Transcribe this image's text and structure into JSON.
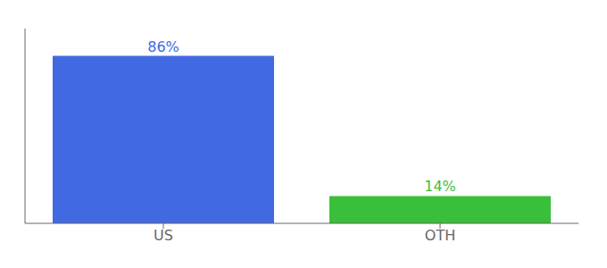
{
  "chart_data": {
    "type": "bar",
    "categories": [
      "US",
      "OTH"
    ],
    "values": [
      86,
      14
    ],
    "value_labels": [
      "86%",
      "14%"
    ],
    "colors": [
      "#4169e1",
      "#3abf3a"
    ],
    "ylim": [
      0,
      100
    ],
    "tick_labels": "x",
    "data_labels": true,
    "grid": false
  }
}
